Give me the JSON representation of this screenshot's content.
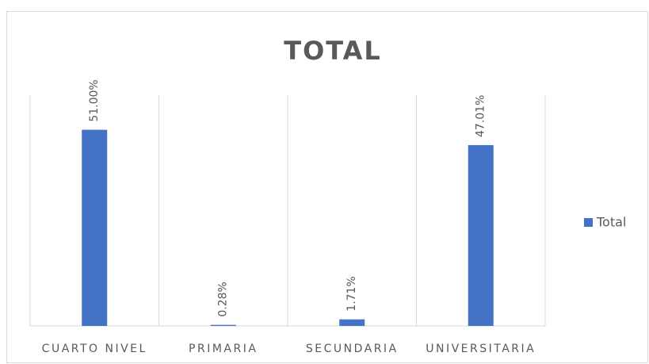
{
  "chart_data": {
    "type": "bar",
    "title": "TOTAL",
    "categories": [
      "CUARTO NIVEL",
      "PRIMARIA",
      "SECUNDARIA",
      "UNIVERSITARIA"
    ],
    "series": [
      {
        "name": "Total",
        "color": "#4472c4",
        "values": [
          51.0,
          0.28,
          1.71,
          47.01
        ],
        "value_labels": [
          "51.00%",
          "0.28%",
          "1.71%",
          "47.01%"
        ]
      }
    ],
    "ylim": [
      0,
      60
    ],
    "legend": "right"
  }
}
